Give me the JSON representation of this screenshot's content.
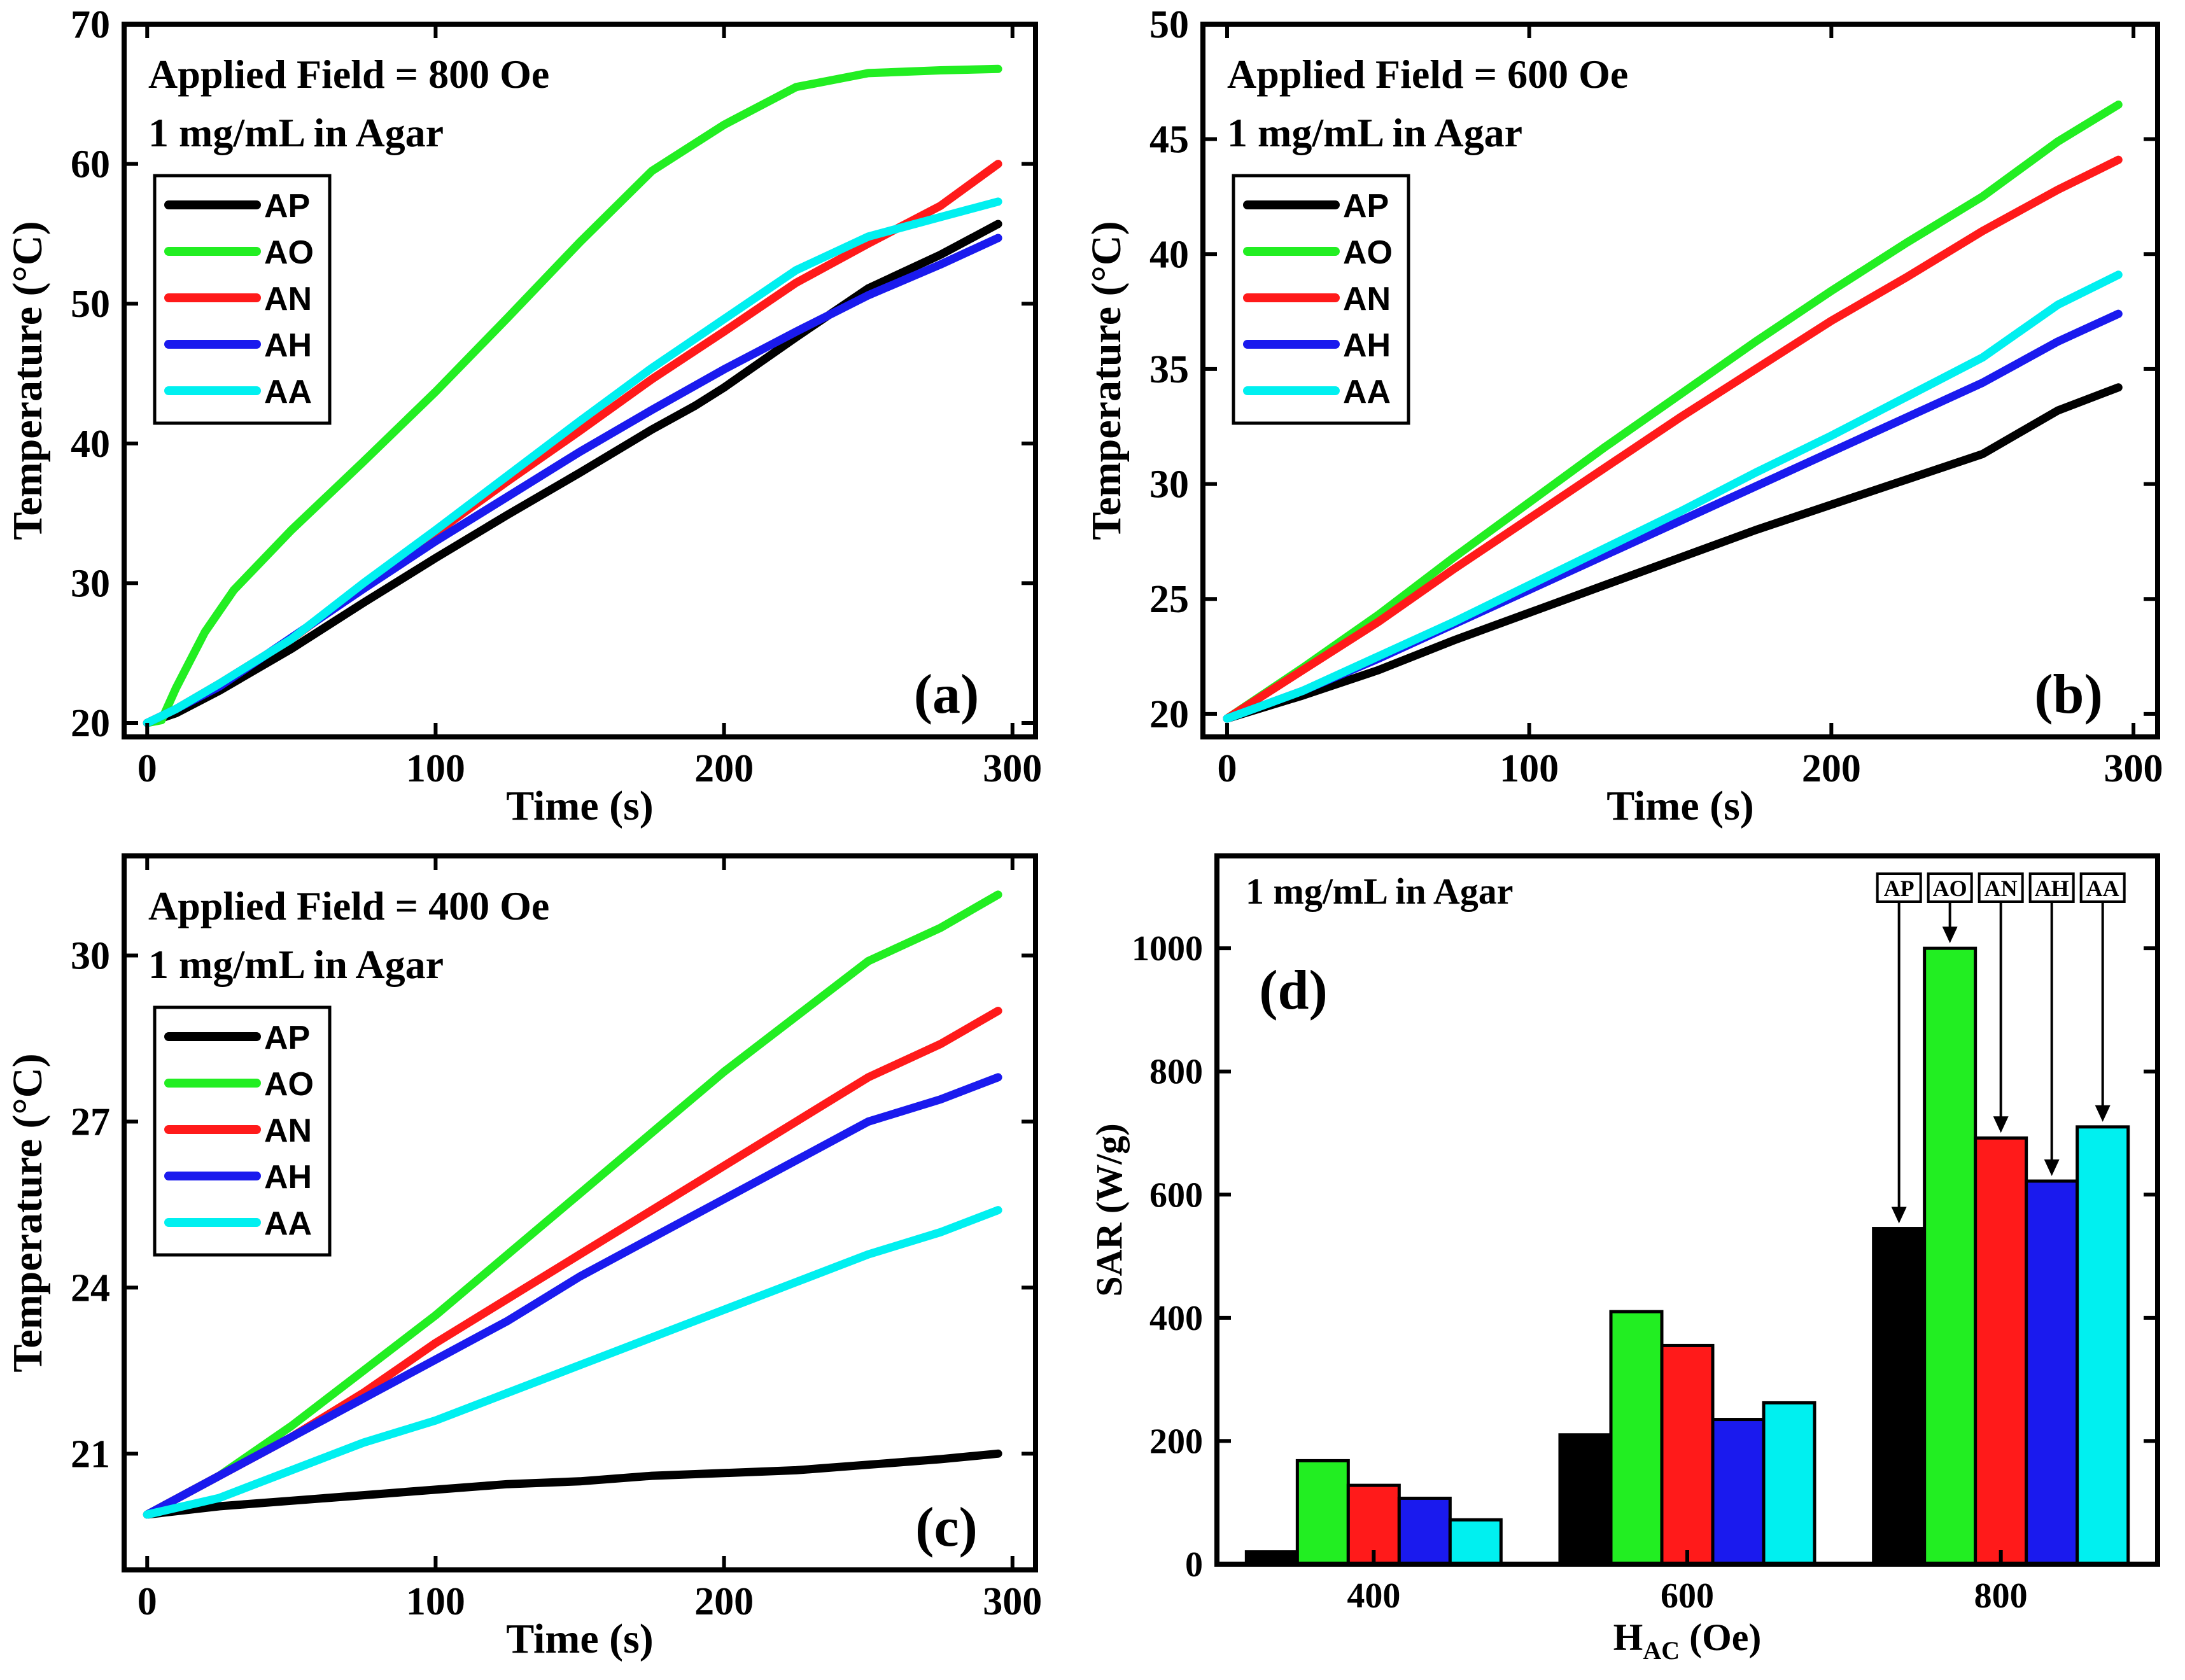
{
  "chart_data": [
    {
      "type": "line",
      "panel_label": "(a)",
      "annotations": [
        "Applied Field = 800 Oe",
        "1 mg/mL in Agar"
      ],
      "xlabel": "Time (s)",
      "ylabel": "Temperature (°C)",
      "xlim": [
        -8,
        308
      ],
      "ylim": [
        19,
        70
      ],
      "xticks": [
        0,
        100,
        200,
        300
      ],
      "yticks": [
        20,
        30,
        40,
        50,
        60,
        70
      ],
      "legend_position": "upper-left",
      "series": [
        {
          "name": "AP",
          "color": "#000000",
          "x": [
            0,
            10,
            25,
            50,
            75,
            100,
            125,
            150,
            175,
            190,
            200,
            225,
            250,
            275,
            295
          ],
          "y": [
            20,
            20.7,
            22.3,
            25.3,
            28.6,
            31.8,
            34.9,
            37.9,
            41,
            42.7,
            44,
            47.6,
            51.1,
            53.5,
            55.7
          ]
        },
        {
          "name": "AO",
          "color": "#22ee22",
          "x": [
            0,
            5,
            10,
            15,
            20,
            30,
            50,
            75,
            100,
            125,
            150,
            175,
            200,
            225,
            250,
            275,
            295
          ],
          "y": [
            20,
            20.2,
            22.5,
            24.5,
            26.5,
            29.5,
            33.8,
            38.7,
            43.7,
            49,
            54.4,
            59.5,
            62.8,
            65.5,
            66.5,
            66.7,
            66.8
          ]
        },
        {
          "name": "AN",
          "color": "#ff1a1a",
          "x": [
            0,
            10,
            25,
            50,
            75,
            100,
            125,
            150,
            175,
            200,
            225,
            250,
            275,
            295
          ],
          "y": [
            20,
            21,
            22.8,
            26,
            29.8,
            33.6,
            37.3,
            40.9,
            44.6,
            48,
            51.5,
            54.3,
            57,
            60
          ]
        },
        {
          "name": "AH",
          "color": "#1a1aee",
          "x": [
            0,
            10,
            25,
            50,
            75,
            100,
            125,
            150,
            175,
            200,
            225,
            250,
            275,
            295
          ],
          "y": [
            20,
            21,
            22.6,
            26.1,
            29.6,
            33,
            36.2,
            39.4,
            42.4,
            45.3,
            48,
            50.6,
            52.8,
            54.7
          ]
        },
        {
          "name": "AA",
          "color": "#00f0f0",
          "x": [
            0,
            10,
            25,
            50,
            75,
            100,
            125,
            150,
            175,
            200,
            225,
            250,
            275,
            295
          ],
          "y": [
            20,
            21,
            22.8,
            26,
            30,
            33.8,
            37.7,
            41.6,
            45.4,
            48.9,
            52.4,
            54.8,
            56.2,
            57.3
          ]
        }
      ]
    },
    {
      "type": "line",
      "panel_label": "(b)",
      "annotations": [
        "Applied Field = 600 Oe",
        "1 mg/mL in Agar"
      ],
      "xlabel": "Time (s)",
      "ylabel": "Temperature (°C)",
      "xlim": [
        -8,
        308
      ],
      "ylim": [
        19,
        50
      ],
      "xticks": [
        0,
        100,
        200,
        300
      ],
      "yticks": [
        20,
        25,
        30,
        35,
        40,
        45,
        50
      ],
      "legend_position": "upper-left",
      "series": [
        {
          "name": "AP",
          "color": "#000000",
          "x": [
            0,
            25,
            50,
            75,
            100,
            125,
            150,
            175,
            200,
            225,
            250,
            275,
            295
          ],
          "y": [
            19.8,
            20.8,
            21.9,
            23.2,
            24.4,
            25.6,
            26.8,
            28,
            29.1,
            30.2,
            31.3,
            33.2,
            34.2
          ]
        },
        {
          "name": "AO",
          "color": "#22ee22",
          "x": [
            0,
            25,
            50,
            75,
            100,
            125,
            150,
            175,
            200,
            225,
            250,
            275,
            295
          ],
          "y": [
            19.8,
            22,
            24.3,
            26.8,
            29.2,
            31.6,
            33.9,
            36.2,
            38.4,
            40.5,
            42.5,
            44.9,
            46.5
          ]
        },
        {
          "name": "AN",
          "color": "#ff1a1a",
          "x": [
            0,
            25,
            50,
            75,
            100,
            125,
            150,
            175,
            200,
            225,
            250,
            275,
            295
          ],
          "y": [
            19.8,
            21.9,
            24,
            26.3,
            28.5,
            30.7,
            32.9,
            35,
            37.1,
            39,
            41,
            42.8,
            44.1
          ]
        },
        {
          "name": "AH",
          "color": "#1a1aee",
          "x": [
            0,
            25,
            50,
            75,
            100,
            125,
            150,
            175,
            200,
            225,
            250,
            275,
            295
          ],
          "y": [
            19.8,
            21,
            22.4,
            23.9,
            25.4,
            26.9,
            28.4,
            29.9,
            31.4,
            32.9,
            34.4,
            36.2,
            37.4
          ]
        },
        {
          "name": "AA",
          "color": "#00f0f0",
          "x": [
            0,
            25,
            50,
            75,
            100,
            125,
            150,
            175,
            200,
            225,
            250,
            275,
            295
          ],
          "y": [
            19.8,
            21,
            22.5,
            24,
            25.6,
            27.2,
            28.8,
            30.5,
            32.1,
            33.8,
            35.5,
            37.8,
            39.1
          ]
        }
      ]
    },
    {
      "type": "line",
      "panel_label": "(c)",
      "annotations": [
        "Applied Field = 400 Oe",
        "1 mg/mL in Agar"
      ],
      "xlabel": "Time (s)",
      "ylabel": "Temperature (°C)",
      "xlim": [
        -8,
        308
      ],
      "ylim": [
        18.9,
        31.8
      ],
      "xticks": [
        0,
        100,
        200,
        300
      ],
      "yticks": [
        21,
        24,
        27,
        30
      ],
      "legend_position": "upper-left",
      "series": [
        {
          "name": "AP",
          "color": "#000000",
          "x": [
            0,
            25,
            50,
            75,
            100,
            125,
            150,
            175,
            200,
            225,
            250,
            275,
            295
          ],
          "y": [
            19.9,
            20.05,
            20.15,
            20.25,
            20.35,
            20.45,
            20.5,
            20.6,
            20.65,
            20.7,
            20.8,
            20.9,
            21
          ]
        },
        {
          "name": "AO",
          "color": "#22ee22",
          "x": [
            0,
            25,
            50,
            75,
            100,
            125,
            150,
            175,
            200,
            225,
            250,
            275,
            295
          ],
          "y": [
            19.9,
            20.6,
            21.5,
            22.5,
            23.5,
            24.6,
            25.7,
            26.8,
            27.9,
            28.9,
            29.9,
            30.5,
            31.1
          ]
        },
        {
          "name": "AN",
          "color": "#ff1a1a",
          "x": [
            0,
            25,
            50,
            75,
            100,
            125,
            150,
            175,
            200,
            225,
            250,
            275,
            295
          ],
          "y": [
            19.9,
            20.6,
            21.3,
            22.1,
            23,
            23.8,
            24.6,
            25.4,
            26.2,
            27,
            27.8,
            28.4,
            29
          ]
        },
        {
          "name": "AH",
          "color": "#1a1aee",
          "x": [
            0,
            25,
            50,
            75,
            100,
            125,
            150,
            175,
            200,
            225,
            250,
            275,
            295
          ],
          "y": [
            19.9,
            20.6,
            21.3,
            22,
            22.7,
            23.4,
            24.2,
            24.9,
            25.6,
            26.3,
            27,
            27.4,
            27.8
          ]
        },
        {
          "name": "AA",
          "color": "#00f0f0",
          "x": [
            0,
            25,
            50,
            75,
            100,
            125,
            150,
            175,
            200,
            225,
            250,
            275,
            295
          ],
          "y": [
            19.9,
            20.2,
            20.7,
            21.2,
            21.6,
            22.1,
            22.6,
            23.1,
            23.6,
            24.1,
            24.6,
            25,
            25.4
          ]
        }
      ]
    },
    {
      "type": "bar",
      "panel_label": "(d)",
      "annotations": [
        "1 mg/mL in Agar"
      ],
      "xlabel": "H",
      "xlabel_subscript": "AC",
      "xlabel_unit": " (Oe)",
      "ylabel": "SAR (W/g)",
      "ylim": [
        0,
        1150
      ],
      "yticks": [
        0,
        200,
        400,
        600,
        800,
        1000
      ],
      "categories": [
        "400",
        "600",
        "800"
      ],
      "series": [
        {
          "name": "AP",
          "color": "#000000",
          "values": [
            20,
            210,
            545
          ]
        },
        {
          "name": "AO",
          "color": "#22ee22",
          "values": [
            168,
            410,
            1000
          ]
        },
        {
          "name": "AN",
          "color": "#ff1a1a",
          "values": [
            128,
            355,
            692
          ]
        },
        {
          "name": "AH",
          "color": "#1a1aee",
          "values": [
            107,
            235,
            622
          ]
        },
        {
          "name": "AA",
          "color": "#00f0f0",
          "values": [
            72,
            262,
            710
          ]
        }
      ],
      "callout_labels": [
        "AP",
        "AO",
        "AN",
        "AH",
        "AA"
      ]
    }
  ]
}
